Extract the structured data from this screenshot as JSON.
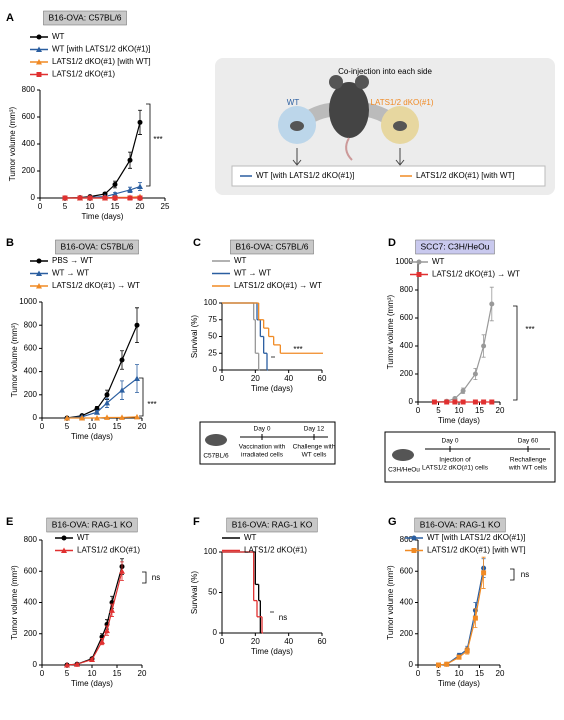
{
  "chart_data": [
    {
      "type": "line",
      "panel": "A",
      "title": "B16-OVA: C57BL/6",
      "title_bg": "#c8c8c8",
      "x_label": "Time (days)",
      "y_label": "Tumor volume (mm³)",
      "xlim": [
        0,
        25
      ],
      "xticks": [
        0,
        5,
        10,
        15,
        20,
        25
      ],
      "ylim": [
        0,
        800
      ],
      "yticks": [
        0,
        200,
        400,
        600,
        800
      ],
      "annotation": "***",
      "series": [
        {
          "name": "WT",
          "color": "#000000",
          "marker": "circle",
          "x": [
            5,
            8,
            10,
            13,
            15,
            18,
            20
          ],
          "values": [
            0,
            3,
            10,
            30,
            100,
            280,
            560
          ],
          "errors": [
            0,
            2,
            5,
            10,
            25,
            60,
            90
          ]
        },
        {
          "name": "WT [with LATS1/2 dKO(#1)]",
          "color": "#2a5ea0",
          "marker": "triangle",
          "x": [
            5,
            8,
            10,
            13,
            15,
            18,
            20
          ],
          "values": [
            0,
            0,
            5,
            10,
            30,
            60,
            85
          ],
          "errors": [
            0,
            0,
            3,
            5,
            10,
            20,
            30
          ]
        },
        {
          "name": "LATS1/2 dKO(#1) [with WT]",
          "color": "#f08a24",
          "marker": "triangle",
          "x": [
            5,
            8,
            10,
            13,
            15,
            18,
            20
          ],
          "values": [
            0,
            0,
            0,
            0,
            5,
            5,
            10
          ]
        },
        {
          "name": "LATS1/2 dKO(#1)",
          "color": "#e03030",
          "marker": "square",
          "x": [
            5,
            8,
            10,
            13,
            15,
            18,
            20
          ],
          "values": [
            0,
            0,
            0,
            0,
            0,
            0,
            0
          ]
        }
      ],
      "diagram": {
        "title": "Co-injection into each side",
        "left": "WT",
        "right": "LATS1/2 dKO(#1)",
        "left_legend": "WT [with LATS1/2 dKO(#1)]",
        "right_legend": "LATS1/2 dKO(#1) [with WT]"
      }
    },
    {
      "type": "line",
      "panel": "B",
      "title": "B16-OVA: C57BL/6",
      "title_bg": "#c8c8c8",
      "x_label": "Time (days)",
      "y_label": "Tumor volume (mm³)",
      "xlim": [
        0,
        20
      ],
      "xticks": [
        0,
        5,
        10,
        15,
        20
      ],
      "ylim": [
        0,
        1000
      ],
      "yticks": [
        0,
        200,
        400,
        600,
        800,
        1000
      ],
      "annotation": "***",
      "series": [
        {
          "name": "PBS → WT",
          "color": "#000000",
          "marker": "circle",
          "x": [
            5,
            8,
            11,
            13,
            16,
            19
          ],
          "values": [
            0,
            20,
            80,
            200,
            500,
            800
          ],
          "errors": [
            0,
            5,
            20,
            40,
            80,
            150
          ]
        },
        {
          "name": "WT → WT",
          "color": "#2a5ea0",
          "marker": "triangle",
          "x": [
            5,
            8,
            11,
            13,
            16,
            19
          ],
          "values": [
            0,
            10,
            50,
            130,
            240,
            340
          ],
          "errors": [
            0,
            5,
            15,
            40,
            80,
            120
          ]
        },
        {
          "name": "LATS1/2 dKO(#1) → WT",
          "color": "#f08a24",
          "marker": "triangle",
          "x": [
            5,
            8,
            11,
            13,
            16,
            19
          ],
          "values": [
            0,
            0,
            0,
            5,
            5,
            10
          ]
        }
      ]
    },
    {
      "type": "step",
      "panel": "C",
      "title": "B16-OVA: C57BL/6",
      "title_bg": "#c8c8c8",
      "x_label": "Time (days)",
      "y_label": "Survival (%)",
      "xlim": [
        0,
        60
      ],
      "xticks": [
        0,
        20,
        40,
        60
      ],
      "ylim": [
        0,
        100
      ],
      "yticks": [
        0,
        25,
        50,
        75,
        100
      ],
      "annotation": "***",
      "series": [
        {
          "name": "WT",
          "color": "#999999",
          "x": [
            0,
            18,
            19,
            20,
            22
          ],
          "values": [
            100,
            100,
            75,
            25,
            0
          ]
        },
        {
          "name": "WT → WT",
          "color": "#2a5ea0",
          "x": [
            0,
            21,
            23,
            25,
            27
          ],
          "values": [
            100,
            75,
            50,
            25,
            0
          ]
        },
        {
          "name": "LATS1/2 dKO(#1) → WT",
          "color": "#f08a24",
          "x": [
            0,
            22,
            25,
            28,
            31,
            35,
            60
          ],
          "values": [
            100,
            75,
            62.5,
            50,
            37.5,
            25,
            25
          ]
        }
      ],
      "timeline": {
        "strain": "C57BL/6",
        "start": "Day 0",
        "end": "Day 12",
        "start_event": [
          "Vaccination with",
          "irradiated cells"
        ],
        "end_event": [
          "Challenge with",
          "WT cells"
        ]
      }
    },
    {
      "type": "line",
      "panel": "D",
      "title": "SCC7: C3H/HeOu",
      "title_bg": "#c9c9ee",
      "x_label": "Time (days)",
      "y_label": "Tumor volume (mm³)",
      "xlim": [
        0,
        20
      ],
      "xticks": [
        0,
        5,
        10,
        15,
        20
      ],
      "ylim": [
        0,
        1000
      ],
      "yticks": [
        0,
        200,
        400,
        600,
        800,
        1000
      ],
      "annotation": "***",
      "series": [
        {
          "name": "WT",
          "color": "#999999",
          "marker": "circle",
          "x": [
            4,
            7,
            9,
            11,
            14,
            16,
            18
          ],
          "values": [
            0,
            5,
            25,
            80,
            200,
            400,
            700
          ],
          "errors": [
            0,
            3,
            10,
            20,
            40,
            80,
            120
          ]
        },
        {
          "name": "LATS1/2 dKO(#1) → WT",
          "color": "#e03030",
          "marker": "square",
          "x": [
            4,
            7,
            9,
            11,
            14,
            16,
            18
          ],
          "values": [
            0,
            0,
            0,
            0,
            0,
            0,
            0
          ]
        }
      ],
      "timeline": {
        "strain": "C3H/HeOu",
        "start": "Day 0",
        "end": "Day 60",
        "start_event": [
          "Injection of",
          "LATS1/2 dKO(#1) cells"
        ],
        "end_event": [
          "Rechallenge",
          "with WT cells"
        ]
      }
    },
    {
      "type": "line",
      "panel": "E",
      "title": "B16-OVA: RAG-1 KO",
      "title_bg": "#c8c8c8",
      "x_label": "Time (days)",
      "y_label": "Tumor volume (mm³)",
      "xlim": [
        0,
        20
      ],
      "xticks": [
        0,
        5,
        10,
        15,
        20
      ],
      "ylim": [
        0,
        800
      ],
      "yticks": [
        0,
        200,
        400,
        600,
        800
      ],
      "annotation": "ns",
      "series": [
        {
          "name": "WT",
          "color": "#000000",
          "marker": "circle",
          "x": [
            5,
            7,
            10,
            12,
            13,
            14,
            16
          ],
          "values": [
            0,
            5,
            40,
            180,
            260,
            400,
            630
          ],
          "errors": [
            0,
            2,
            8,
            20,
            30,
            40,
            50
          ]
        },
        {
          "name": "LATS1/2 dKO(#1)",
          "color": "#e03030",
          "marker": "triangle",
          "x": [
            5,
            7,
            10,
            12,
            13,
            14,
            16
          ],
          "values": [
            0,
            5,
            35,
            150,
            220,
            350,
            600
          ],
          "errors": [
            0,
            2,
            8,
            20,
            30,
            40,
            60
          ]
        }
      ]
    },
    {
      "type": "step",
      "panel": "F",
      "title": "B16-OVA: RAG-1 KO",
      "title_bg": "#c8c8c8",
      "x_label": "Time (days)",
      "y_label": "Survival (%)",
      "xlim": [
        0,
        60
      ],
      "xticks": [
        0,
        20,
        40,
        60
      ],
      "ylim": [
        0,
        100
      ],
      "yticks": [
        0,
        50,
        100
      ],
      "annotation": "ns",
      "series": [
        {
          "name": "WT",
          "color": "#000000",
          "x": [
            0,
            20,
            22,
            23
          ],
          "values": [
            100,
            60,
            40,
            0
          ]
        },
        {
          "name": "LATS1/2 dKO(#1)",
          "color": "#e03030",
          "x": [
            0,
            19,
            21,
            24
          ],
          "values": [
            100,
            40,
            20,
            0
          ]
        }
      ]
    },
    {
      "type": "line",
      "panel": "G",
      "title": "B16-OVA: RAG-1 KO",
      "title_bg": "#c8c8c8",
      "x_label": "Time (days)",
      "y_label": "Tumor volume (mm³)",
      "xlim": [
        0,
        20
      ],
      "xticks": [
        0,
        5,
        10,
        15,
        20
      ],
      "ylim": [
        0,
        800
      ],
      "yticks": [
        0,
        200,
        400,
        600,
        800
      ],
      "annotation": "ns",
      "series": [
        {
          "name": "WT [with LATS1/2 dKO(#1)]",
          "color": "#2a5ea0",
          "marker": "circle",
          "x": [
            5,
            7,
            10,
            12,
            14,
            16
          ],
          "values": [
            0,
            5,
            60,
            100,
            350,
            620
          ],
          "errors": [
            0,
            2,
            15,
            20,
            50,
            60
          ]
        },
        {
          "name": "LATS1/2 dKO(#1) [with WT]",
          "color": "#f08a24",
          "marker": "square",
          "x": [
            5,
            7,
            10,
            12,
            14,
            16
          ],
          "values": [
            0,
            5,
            50,
            90,
            300,
            590
          ],
          "errors": [
            0,
            2,
            10,
            20,
            60,
            100
          ]
        }
      ]
    }
  ]
}
